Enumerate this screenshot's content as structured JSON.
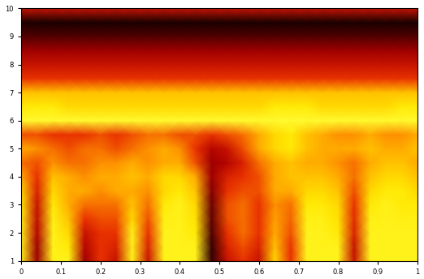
{
  "chart_data": {
    "type": "heatmap",
    "x": [
      0,
      0.04,
      0.08,
      0.12,
      0.16,
      0.2,
      0.24,
      0.28,
      0.32,
      0.36,
      0.4,
      0.44,
      0.48,
      0.52,
      0.56,
      0.6,
      0.64,
      0.68,
      0.72,
      0.76,
      0.8,
      0.84,
      0.88,
      0.92,
      0.96,
      1
    ],
    "y": [
      1,
      1.5,
      2,
      2.5,
      3,
      3.5,
      4,
      4.5,
      5,
      5.5,
      6,
      6.5,
      7,
      7.5,
      8,
      8.5,
      9,
      9.5,
      10
    ],
    "cells": [
      [
        0.9,
        0.3,
        0.9,
        0.9,
        0.3,
        0.5,
        0.4,
        0.9,
        0.4,
        0.9,
        0.9,
        0.9,
        0.1,
        0.4,
        0.5,
        0.4,
        0.8,
        0.5,
        0.9,
        0.9,
        0.9,
        0.4,
        0.9,
        0.9,
        0.9,
        0.9
      ],
      [
        0.9,
        0.3,
        0.9,
        0.85,
        0.35,
        0.5,
        0.45,
        0.9,
        0.45,
        0.9,
        0.9,
        0.9,
        0.1,
        0.45,
        0.55,
        0.45,
        0.75,
        0.5,
        0.9,
        0.9,
        0.9,
        0.4,
        0.9,
        0.9,
        0.9,
        0.9
      ],
      [
        0.9,
        0.35,
        0.9,
        0.8,
        0.4,
        0.5,
        0.5,
        0.9,
        0.5,
        0.9,
        0.9,
        0.85,
        0.15,
        0.5,
        0.6,
        0.5,
        0.7,
        0.55,
        0.9,
        0.9,
        0.85,
        0.45,
        0.9,
        0.9,
        0.9,
        0.9
      ],
      [
        0.88,
        0.38,
        0.88,
        0.75,
        0.5,
        0.55,
        0.55,
        0.8,
        0.55,
        0.88,
        0.9,
        0.82,
        0.18,
        0.55,
        0.6,
        0.5,
        0.68,
        0.58,
        0.88,
        0.88,
        0.82,
        0.48,
        0.88,
        0.9,
        0.88,
        0.88
      ],
      [
        0.85,
        0.4,
        0.85,
        0.7,
        0.6,
        0.6,
        0.6,
        0.75,
        0.6,
        0.85,
        0.9,
        0.8,
        0.2,
        0.55,
        0.6,
        0.5,
        0.65,
        0.6,
        0.85,
        0.85,
        0.8,
        0.5,
        0.85,
        0.9,
        0.85,
        0.85
      ],
      [
        0.8,
        0.45,
        0.8,
        0.7,
        0.7,
        0.65,
        0.7,
        0.7,
        0.65,
        0.8,
        0.85,
        0.75,
        0.25,
        0.5,
        0.55,
        0.55,
        0.7,
        0.7,
        0.8,
        0.8,
        0.75,
        0.55,
        0.8,
        0.85,
        0.85,
        0.8
      ],
      [
        0.7,
        0.5,
        0.75,
        0.7,
        0.65,
        0.7,
        0.7,
        0.75,
        0.7,
        0.8,
        0.8,
        0.7,
        0.3,
        0.45,
        0.5,
        0.55,
        0.7,
        0.75,
        0.75,
        0.75,
        0.7,
        0.6,
        0.75,
        0.8,
        0.8,
        0.75
      ],
      [
        0.6,
        0.55,
        0.65,
        0.6,
        0.6,
        0.65,
        0.65,
        0.7,
        0.65,
        0.7,
        0.7,
        0.55,
        0.3,
        0.35,
        0.45,
        0.6,
        0.7,
        0.75,
        0.7,
        0.7,
        0.65,
        0.6,
        0.7,
        0.75,
        0.75,
        0.7
      ],
      [
        0.7,
        0.65,
        0.6,
        0.55,
        0.6,
        0.6,
        0.55,
        0.6,
        0.65,
        0.7,
        0.65,
        0.5,
        0.35,
        0.4,
        0.55,
        0.7,
        0.8,
        0.85,
        0.75,
        0.7,
        0.7,
        0.7,
        0.75,
        0.7,
        0.7,
        0.75
      ],
      [
        0.55,
        0.55,
        0.5,
        0.5,
        0.5,
        0.55,
        0.5,
        0.55,
        0.6,
        0.6,
        0.55,
        0.55,
        0.5,
        0.55,
        0.6,
        0.7,
        0.8,
        0.85,
        0.75,
        0.7,
        0.65,
        0.65,
        0.7,
        0.65,
        0.65,
        0.7
      ],
      [
        0.95,
        0.95,
        0.95,
        0.95,
        0.95,
        0.95,
        0.95,
        0.95,
        0.95,
        0.95,
        0.95,
        0.95,
        0.95,
        0.95,
        0.95,
        0.95,
        0.95,
        0.95,
        0.95,
        0.95,
        0.95,
        0.95,
        0.95,
        0.95,
        0.95,
        0.95
      ],
      [
        0.85,
        0.85,
        0.85,
        0.8,
        0.8,
        0.8,
        0.8,
        0.8,
        0.8,
        0.8,
        0.8,
        0.8,
        0.8,
        0.8,
        0.8,
        0.8,
        0.85,
        0.85,
        0.85,
        0.8,
        0.8,
        0.8,
        0.8,
        0.8,
        0.85,
        0.85
      ],
      [
        0.75,
        0.75,
        0.75,
        0.75,
        0.75,
        0.75,
        0.75,
        0.75,
        0.75,
        0.75,
        0.75,
        0.75,
        0.75,
        0.75,
        0.75,
        0.75,
        0.75,
        0.75,
        0.75,
        0.75,
        0.75,
        0.75,
        0.75,
        0.75,
        0.75,
        0.75
      ],
      [
        0.5,
        0.5,
        0.5,
        0.5,
        0.5,
        0.5,
        0.5,
        0.5,
        0.5,
        0.5,
        0.5,
        0.5,
        0.5,
        0.5,
        0.5,
        0.5,
        0.5,
        0.5,
        0.5,
        0.5,
        0.5,
        0.5,
        0.5,
        0.5,
        0.5,
        0.5
      ],
      [
        0.4,
        0.4,
        0.4,
        0.4,
        0.4,
        0.4,
        0.4,
        0.4,
        0.4,
        0.4,
        0.4,
        0.4,
        0.4,
        0.4,
        0.4,
        0.4,
        0.4,
        0.4,
        0.4,
        0.4,
        0.4,
        0.4,
        0.4,
        0.4,
        0.4,
        0.4
      ],
      [
        0.3,
        0.3,
        0.3,
        0.3,
        0.3,
        0.3,
        0.3,
        0.3,
        0.3,
        0.3,
        0.3,
        0.3,
        0.3,
        0.3,
        0.3,
        0.3,
        0.3,
        0.3,
        0.3,
        0.3,
        0.3,
        0.3,
        0.3,
        0.3,
        0.3,
        0.3
      ],
      [
        0.15,
        0.15,
        0.15,
        0.15,
        0.15,
        0.15,
        0.15,
        0.15,
        0.15,
        0.15,
        0.15,
        0.15,
        0.15,
        0.15,
        0.15,
        0.15,
        0.15,
        0.15,
        0.15,
        0.15,
        0.15,
        0.15,
        0.15,
        0.15,
        0.15,
        0.15
      ],
      [
        0.05,
        0.05,
        0.05,
        0.05,
        0.05,
        0.05,
        0.05,
        0.05,
        0.05,
        0.05,
        0.05,
        0.05,
        0.05,
        0.05,
        0.05,
        0.05,
        0.05,
        0.05,
        0.05,
        0.05,
        0.05,
        0.05,
        0.05,
        0.05,
        0.05,
        0.05
      ],
      [
        0.4,
        0.4,
        0.4,
        0.4,
        0.4,
        0.4,
        0.4,
        0.4,
        0.4,
        0.4,
        0.4,
        0.4,
        0.4,
        0.4,
        0.4,
        0.4,
        0.4,
        0.4,
        0.4,
        0.4,
        0.4,
        0.4,
        0.4,
        0.4,
        0.4,
        0.4
      ]
    ],
    "color_range": [
      0,
      1
    ],
    "xlim": [
      0,
      1
    ],
    "ylim": [
      1,
      10
    ],
    "xticks": [
      0,
      0.1,
      0.2,
      0.3,
      0.4,
      0.5,
      0.6,
      0.7,
      0.8,
      0.9,
      1
    ],
    "yticks": [
      1,
      2,
      3,
      4,
      5,
      6,
      7,
      8,
      9,
      10
    ]
  }
}
